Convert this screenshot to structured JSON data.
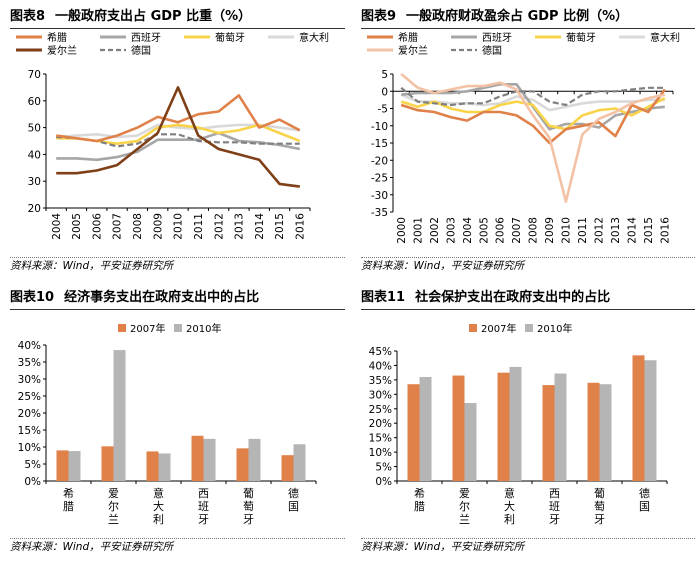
{
  "source_text": "资料来源：Wind，平安证券研究所",
  "colors": {
    "greece": "#E0814A",
    "spain": "#A6A6A6",
    "portugal": "#F9D44B",
    "italy": "#D9D9D9",
    "ireland": "#7F3F17",
    "ireland_light": "#F3C2A5",
    "germany": "#7F7F7F",
    "bar2007": "#E0814A",
    "bar2010": "#B5B5B5"
  },
  "charts": [
    {
      "id": "chart8",
      "number": "图表8",
      "title": "一般政府支出占 GDP 比重（%）",
      "chart_data": {
        "type": "line",
        "x": [
          "2004",
          "2005",
          "2006",
          "2007",
          "2008",
          "2009",
          "2010",
          "2011",
          "2012",
          "2013",
          "2014",
          "2015",
          "2016"
        ],
        "ylim": [
          20,
          70
        ],
        "yticks": [
          20,
          30,
          40,
          50,
          60,
          70
        ],
        "series": [
          {
            "name": "希腊",
            "color": "greece",
            "style": "solid",
            "values": [
              47,
              46,
              45,
              47,
              50,
              54,
              52,
              55,
              56,
              62,
              50,
              53,
              49
            ]
          },
          {
            "name": "西班牙",
            "color": "spain",
            "style": "solid",
            "values": [
              38.5,
              38.5,
              38,
              39,
              41,
              45.5,
              45.5,
              45.5,
              48,
              45,
              44.5,
              43.5,
              42
            ]
          },
          {
            "name": "葡萄牙",
            "color": "portugal",
            "style": "solid",
            "values": [
              46,
              46,
              45,
              44,
              45,
              50,
              51,
              50,
              48,
              49,
              51,
              48,
              45
            ]
          },
          {
            "name": "意大利",
            "color": "italy",
            "style": "solid",
            "values": [
              46.5,
              47,
              47.5,
              46.5,
              47,
              51,
              50,
              49.5,
              50.5,
              51,
              51,
              50,
              49
            ]
          },
          {
            "name": "爱尔兰",
            "color": "ireland",
            "style": "solid",
            "values": [
              33,
              33,
              34,
              36,
              42,
              48,
              65,
              47,
              42,
              40,
              38,
              29,
              28
            ]
          },
          {
            "name": "德国",
            "color": "germany",
            "style": "dash",
            "values": [
              46.5,
              46,
              45,
              43,
              44,
              47.5,
              47.5,
              45,
              44.5,
              44.5,
              44,
              44,
              44
            ]
          }
        ]
      }
    },
    {
      "id": "chart9",
      "number": "图表9",
      "title": "一般政府财政盈余占 GDP 比例（%）",
      "chart_data": {
        "type": "line",
        "x": [
          "2000",
          "2001",
          "2002",
          "2003",
          "2004",
          "2005",
          "2006",
          "2007",
          "2008",
          "2009",
          "2010",
          "2011",
          "2012",
          "2013",
          "2014",
          "2015",
          "2016"
        ],
        "ylim": [
          -35,
          5
        ],
        "yticks": [
          -35,
          -30,
          -25,
          -20,
          -15,
          -10,
          -5,
          0,
          5
        ],
        "series": [
          {
            "name": "希腊",
            "color": "greece",
            "style": "solid",
            "values": [
              -4,
              -5.5,
              -6,
              -7.5,
              -8.5,
              -6,
              -6,
              -7,
              -10,
              -15,
              -11,
              -10,
              -9,
              -13,
              -4,
              -6,
              0.5
            ]
          },
          {
            "name": "西班牙",
            "color": "spain",
            "style": "solid",
            "values": [
              -1,
              -0.5,
              -0.5,
              -0.5,
              0,
              1,
              2,
              2,
              -4.5,
              -11,
              -9.5,
              -9.5,
              -10.5,
              -7,
              -6,
              -5,
              -4.5
            ]
          },
          {
            "name": "葡萄牙",
            "color": "portugal",
            "style": "solid",
            "values": [
              -3,
              -4.5,
              -3,
              -5,
              -6,
              -6,
              -4,
              -3,
              -4,
              -10,
              -11,
              -7,
              -5.5,
              -5,
              -7,
              -4.5,
              -2
            ]
          },
          {
            "name": "意大利",
            "color": "italy",
            "style": "solid",
            "values": [
              -1,
              -3,
              -3,
              -3.5,
              -3.5,
              -4,
              -3.5,
              -1.5,
              -2.5,
              -5.5,
              -4.5,
              -3.5,
              -3,
              -3,
              -3,
              -2.5,
              -2.5
            ]
          },
          {
            "name": "爱尔兰",
            "color": "ireland_light",
            "style": "solid",
            "values": [
              5,
              1,
              -0.5,
              0.5,
              1.5,
              1.5,
              2.5,
              0.5,
              -7,
              -13.5,
              -32,
              -12.5,
              -8,
              -6,
              -3.5,
              -2,
              -1
            ]
          },
          {
            "name": "德国",
            "color": "germany",
            "style": "dash",
            "values": [
              1,
              -3,
              -3.5,
              -4,
              -3.5,
              -3.5,
              -1.5,
              0,
              0,
              -3,
              -4,
              -1,
              0,
              0,
              0.5,
              1,
              1
            ]
          }
        ]
      }
    },
    {
      "id": "chart10",
      "number": "图表10",
      "title": "经济事务支出在政府支出中的占比",
      "chart_data": {
        "type": "bar",
        "categories": [
          "希腊",
          "爱尔兰",
          "意大利",
          "西班牙",
          "葡萄牙",
          "德国"
        ],
        "ylim": [
          0,
          40
        ],
        "yticks": [
          "0%",
          "5%",
          "10%",
          "15%",
          "20%",
          "25%",
          "30%",
          "35%",
          "40%"
        ],
        "series": [
          {
            "name": "2007年",
            "color": "bar2007",
            "values": [
              9,
              10.2,
              8.7,
              13.3,
              9.6,
              7.6
            ]
          },
          {
            "name": "2010年",
            "color": "bar2010",
            "values": [
              8.8,
              38.5,
              8.1,
              12.4,
              12.4,
              10.8
            ]
          }
        ]
      }
    },
    {
      "id": "chart11",
      "number": "图表11",
      "title": "社会保护支出在政府支出中的占比",
      "chart_data": {
        "type": "bar",
        "categories": [
          "希腊",
          "爱尔兰",
          "意大利",
          "西班牙",
          "葡萄牙",
          "德国"
        ],
        "ylim": [
          0,
          45
        ],
        "yticks": [
          "0%",
          "5%",
          "10%",
          "15%",
          "20%",
          "25%",
          "30%",
          "35%",
          "40%",
          "45%"
        ],
        "series": [
          {
            "name": "2007年",
            "color": "bar2007",
            "values": [
              33.5,
              36.5,
              37.5,
              33.2,
              34,
              43.5
            ]
          },
          {
            "name": "2010年",
            "color": "bar2010",
            "values": [
              36,
              27,
              39.5,
              37.2,
              33.5,
              41.8
            ]
          }
        ]
      }
    }
  ]
}
